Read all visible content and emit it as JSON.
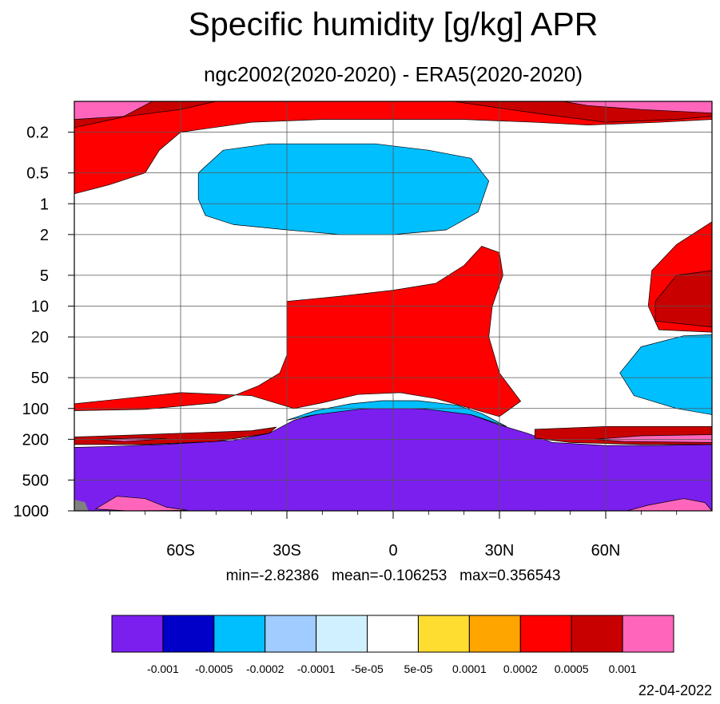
{
  "title": "Specific humidity [g/kg] APR",
  "subtitle": "ngc2002(2020-2020) - ERA5(2020-2020)",
  "stats": {
    "min": "min=-2.82386",
    "mean": "mean=-0.106253",
    "max": "max=0.356543"
  },
  "date": "22-04-2022",
  "chart_data": {
    "type": "contour",
    "title": "Specific humidity [g/kg] APR",
    "subtitle": "ngc2002(2020-2020) - ERA5(2020-2020)",
    "x_axis": {
      "range": [
        -90,
        90
      ],
      "ticks": [
        {
          "value": -60,
          "label": "60S"
        },
        {
          "value": -30,
          "label": "30S"
        },
        {
          "value": 0,
          "label": "0"
        },
        {
          "value": 30,
          "label": "30N"
        },
        {
          "value": 60,
          "label": "60N"
        }
      ]
    },
    "y_axis": {
      "scale": "log",
      "inverted": true,
      "range": [
        1000,
        0.1
      ],
      "ticks": [
        {
          "value": 0.2,
          "label": "0.2"
        },
        {
          "value": 0.5,
          "label": "0.5"
        },
        {
          "value": 1,
          "label": "1"
        },
        {
          "value": 2,
          "label": "2"
        },
        {
          "value": 5,
          "label": "5"
        },
        {
          "value": 10,
          "label": "10"
        },
        {
          "value": 20,
          "label": "20"
        },
        {
          "value": 50,
          "label": "50"
        },
        {
          "value": 100,
          "label": "100"
        },
        {
          "value": 200,
          "label": "200"
        },
        {
          "value": 500,
          "label": "500"
        },
        {
          "value": 1000,
          "label": "1000"
        }
      ]
    },
    "grid": true,
    "contour_levels": [
      "-0.001",
      "-0.0005",
      "-0.0002",
      "-0.0001",
      "-5e-05",
      "5e-05",
      "0.0001",
      "0.0002",
      "0.0005",
      "0.001"
    ],
    "colorbar_colors": [
      "#7B1FEF",
      "#0000C8",
      "#00BFFF",
      "#A0CCFF",
      "#D0F0FF",
      "#FFFFFF",
      "#FFDD30",
      "#FFA500",
      "#FF0000",
      "#C80000",
      "#FF66BB"
    ],
    "colorbar_placement": "bottom",
    "missing_color": "#808080",
    "regions": [
      {
        "level": "<-0.001",
        "color": "#7B1FEF",
        "coords": [
          [
            -90,
            1000
          ],
          [
            -90,
            240
          ],
          [
            -80,
            235
          ],
          [
            -65,
            225
          ],
          [
            -45,
            205
          ],
          [
            -35,
            175
          ],
          [
            -28,
            130
          ],
          [
            -22,
            115
          ],
          [
            -15,
            103
          ],
          [
            -5,
            100
          ],
          [
            5,
            100
          ],
          [
            15,
            104
          ],
          [
            22,
            115
          ],
          [
            30,
            145
          ],
          [
            38,
            175
          ],
          [
            45,
            215
          ],
          [
            60,
            230
          ],
          [
            75,
            230
          ],
          [
            90,
            225
          ],
          [
            90,
            1000
          ]
        ]
      },
      {
        "level": "-0.0005 to -0.001",
        "color": "#0000C8",
        "coords": [
          [
            -10,
            0.9
          ],
          [
            -5,
            0.65
          ],
          [
            3,
            0.62
          ],
          [
            8,
            0.7
          ],
          [
            10,
            0.9
          ],
          [
            8,
            1.3
          ],
          [
            3,
            1.6
          ],
          [
            -5,
            1.6
          ],
          [
            -10,
            1.3
          ]
        ]
      },
      {
        "level": "-0.0005 to -0.001",
        "color": "#0000C8",
        "coords": [
          [
            71,
            36
          ],
          [
            77,
            23
          ],
          [
            90,
            20
          ],
          [
            90,
            95
          ],
          [
            80,
            86
          ],
          [
            73,
            65
          ]
        ]
      },
      {
        "level": "-0.0002 to -0.0005",
        "color": "#00BFFF",
        "coords": [
          [
            -55,
            0.5
          ],
          [
            -48,
            0.3
          ],
          [
            -35,
            0.26
          ],
          [
            -20,
            0.26
          ],
          [
            -5,
            0.26
          ],
          [
            10,
            0.3
          ],
          [
            22,
            0.36
          ],
          [
            27,
            0.6
          ],
          [
            24,
            1.2
          ],
          [
            15,
            1.8
          ],
          [
            0,
            2.0
          ],
          [
            -15,
            2.0
          ],
          [
            -30,
            1.8
          ],
          [
            -45,
            1.6
          ],
          [
            -53,
            1.3
          ],
          [
            -55,
            0.9
          ]
        ]
      },
      {
        "level": "-0.0002 to -0.0005",
        "color": "#00BFFF",
        "coords": [
          [
            64,
            45
          ],
          [
            70,
            25
          ],
          [
            82,
            19.5
          ],
          [
            90,
            19
          ],
          [
            90,
            115
          ],
          [
            80,
            100
          ],
          [
            68,
            75
          ]
        ]
      },
      {
        "level": "-0.0002 to -0.0005",
        "color": "#00BFFF",
        "coords": [
          [
            -30,
            130
          ],
          [
            -22,
            105
          ],
          [
            -12,
            90
          ],
          [
            -3,
            84
          ],
          [
            7,
            84
          ],
          [
            18,
            93
          ],
          [
            25,
            112
          ],
          [
            32,
            150
          ],
          [
            22,
            115
          ],
          [
            8,
            100
          ],
          [
            -8,
            100
          ],
          [
            -22,
            115
          ]
        ]
      },
      {
        "level": ">0.0002",
        "color": "#FF0000",
        "coords": [
          [
            -30,
            30
          ],
          [
            -30,
            9
          ],
          [
            -15,
            8
          ],
          [
            0,
            7
          ],
          [
            12,
            6
          ],
          [
            20,
            4
          ],
          [
            25,
            2.6
          ],
          [
            30,
            3.0
          ],
          [
            31,
            5
          ],
          [
            28,
            10
          ],
          [
            27,
            20
          ],
          [
            30,
            45
          ],
          [
            36,
            85
          ],
          [
            30,
            120
          ],
          [
            22,
            100
          ],
          [
            12,
            80
          ],
          [
            2,
            70
          ],
          [
            -10,
            73
          ],
          [
            -20,
            88
          ],
          [
            -28,
            100
          ],
          [
            -40,
            75
          ],
          [
            -60,
            70
          ],
          [
            -90,
            90
          ],
          [
            -90,
            105
          ],
          [
            -70,
            102
          ],
          [
            -50,
            88
          ],
          [
            -38,
            60
          ],
          [
            -32,
            45
          ]
        ]
      },
      {
        "level": ">0.0002",
        "color": "#FF0000",
        "coords": [
          [
            -90,
            0.8
          ],
          [
            -80,
            0.65
          ],
          [
            -70,
            0.5
          ],
          [
            -66,
            0.3
          ],
          [
            -60,
            0.2
          ],
          [
            -40,
            0.16
          ],
          [
            -20,
            0.15
          ],
          [
            0,
            0.15
          ],
          [
            20,
            0.15
          ],
          [
            40,
            0.16
          ],
          [
            55,
            0.17
          ],
          [
            75,
            0.16
          ],
          [
            90,
            0.15
          ],
          [
            90,
            0.1
          ],
          [
            -90,
            0.1
          ]
        ]
      },
      {
        "level": ">0.0002",
        "color": "#FF0000",
        "coords": [
          [
            90,
            1.5
          ],
          [
            80,
            2.5
          ],
          [
            73,
            4.5
          ],
          [
            72,
            10
          ],
          [
            75,
            17
          ],
          [
            90,
            18
          ]
        ]
      },
      {
        "level": ">0.0005",
        "color": "#C80000",
        "coords": [
          [
            -90,
            0.18
          ],
          [
            -75,
            0.14
          ],
          [
            -60,
            0.12
          ],
          [
            -50,
            0.1
          ],
          [
            -90,
            0.1
          ]
        ]
      },
      {
        "level": ">0.0005",
        "color": "#C80000",
        "coords": [
          [
            90,
            4.5
          ],
          [
            80,
            5
          ],
          [
            74,
            9
          ],
          [
            74,
            14
          ],
          [
            90,
            16
          ]
        ]
      },
      {
        "level": ">0.0005",
        "color": "#C80000",
        "coords": [
          [
            17,
            0.1
          ],
          [
            40,
            0.13
          ],
          [
            60,
            0.16
          ],
          [
            80,
            0.15
          ],
          [
            90,
            0.14
          ],
          [
            90,
            0.1
          ]
        ]
      },
      {
        "level": ">0.0005",
        "color": "#C80000",
        "coords": [
          [
            -90,
            190
          ],
          [
            -60,
            175
          ],
          [
            -40,
            165
          ],
          [
            -33,
            152
          ],
          [
            -35,
            175
          ],
          [
            -50,
            210
          ],
          [
            -70,
            225
          ],
          [
            -90,
            225
          ]
        ]
      },
      {
        "level": ">0.0005",
        "color": "#C80000",
        "coords": [
          [
            40,
            160
          ],
          [
            60,
            150
          ],
          [
            90,
            150
          ],
          [
            90,
            225
          ],
          [
            70,
            225
          ],
          [
            50,
            215
          ],
          [
            40,
            195
          ]
        ]
      },
      {
        "level": ">0.001",
        "color": "#FF66BB",
        "coords": [
          [
            -90,
            0.1
          ],
          [
            -68,
            0.1
          ],
          [
            -76,
            0.14
          ],
          [
            -90,
            0.15
          ]
        ]
      },
      {
        "level": ">0.001",
        "color": "#FF66BB",
        "coords": [
          [
            48,
            0.1
          ],
          [
            90,
            0.1
          ],
          [
            90,
            0.13
          ],
          [
            70,
            0.12
          ],
          [
            55,
            0.11
          ]
        ]
      },
      {
        "level": ">0.001",
        "color": "#FF66BB",
        "coords": [
          [
            -84,
            200
          ],
          [
            -72,
            195
          ],
          [
            -64,
            198
          ],
          [
            -76,
            210
          ]
        ]
      },
      {
        "level": ">0.001",
        "color": "#FF66BB",
        "coords": [
          [
            57,
            200
          ],
          [
            70,
            185
          ],
          [
            90,
            180
          ],
          [
            90,
            215
          ],
          [
            65,
            210
          ]
        ]
      },
      {
        "level": ">0.001",
        "color": "#FF66BB",
        "coords": [
          [
            -84,
            960
          ],
          [
            -78,
            720
          ],
          [
            -70,
            760
          ],
          [
            -64,
            920
          ],
          [
            -58,
            990
          ],
          [
            -75,
            1000
          ]
        ]
      },
      {
        "level": ">0.001",
        "color": "#FF66BB",
        "coords": [
          [
            66,
            1000
          ],
          [
            72,
            880
          ],
          [
            82,
            760
          ],
          [
            88,
            830
          ],
          [
            90,
            1000
          ]
        ]
      }
    ]
  }
}
